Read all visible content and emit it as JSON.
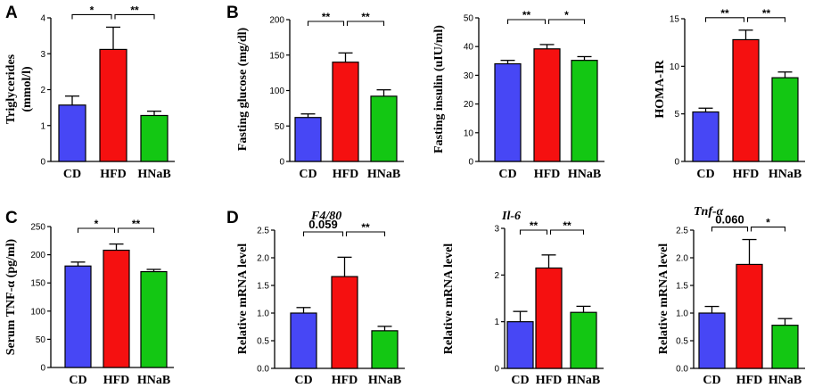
{
  "chart_data": [
    {
      "id": "tg",
      "panel": "A",
      "type": "bar",
      "gene": "",
      "ylabel": "Triglycerides",
      "ylabel2": "(mmol/l)",
      "categories": [
        "CD",
        "HFD",
        "HNaB"
      ],
      "values": [
        1.57,
        3.12,
        1.28
      ],
      "errors": [
        0.25,
        0.62,
        0.12
      ],
      "ylim": [
        0,
        4
      ],
      "yticks": [
        "0",
        "1",
        "2",
        "3",
        "4"
      ],
      "sig": [
        {
          "pair": "CD-HFD",
          "label": "*"
        },
        {
          "pair": "HFD-HNaB",
          "label": "**"
        }
      ]
    },
    {
      "id": "glu",
      "panel": "B",
      "type": "bar",
      "gene": "",
      "ylabel": "Fasting glucose (mg/dl)",
      "ylabel2": "",
      "categories": [
        "CD",
        "HFD",
        "HNaB"
      ],
      "values": [
        62,
        140,
        92
      ],
      "errors": [
        5,
        13,
        9
      ],
      "ylim": [
        0,
        200
      ],
      "yticks": [
        "0",
        "50",
        "100",
        "150",
        "200"
      ],
      "sig": [
        {
          "pair": "CD-HFD",
          "label": "**"
        },
        {
          "pair": "HFD-HNaB",
          "label": "**"
        }
      ]
    },
    {
      "id": "ins",
      "panel": "",
      "type": "bar",
      "gene": "",
      "ylabel": "Fasting  insulin (uIU/ml)",
      "ylabel2": "",
      "categories": [
        "CD",
        "HFD",
        "HNaB"
      ],
      "values": [
        34,
        39.2,
        35.2
      ],
      "errors": [
        1.2,
        1.5,
        1.3
      ],
      "ylim": [
        0,
        50
      ],
      "yticks": [
        "0",
        "10",
        "20",
        "30",
        "40",
        "50"
      ],
      "sig": [
        {
          "pair": "CD-HFD",
          "label": "**"
        },
        {
          "pair": "HFD-HNaB",
          "label": "*"
        }
      ]
    },
    {
      "id": "homa",
      "panel": "",
      "type": "bar",
      "gene": "",
      "ylabel": "HOMA-IR",
      "ylabel2": "",
      "categories": [
        "CD",
        "HFD",
        "HNaB"
      ],
      "values": [
        5.2,
        12.8,
        8.8
      ],
      "errors": [
        0.4,
        1.0,
        0.6
      ],
      "ylim": [
        0,
        15
      ],
      "yticks": [
        "0",
        "5",
        "10",
        "15"
      ],
      "sig": [
        {
          "pair": "CD-HFD",
          "label": "**"
        },
        {
          "pair": "HFD-HNaB",
          "label": "**"
        }
      ]
    },
    {
      "id": "tnf",
      "panel": "C",
      "type": "bar",
      "gene": "",
      "ylabel": "Serum TNF-α (pg/ml)",
      "ylabel2": "",
      "categories": [
        "CD",
        "HFD",
        "HNaB"
      ],
      "values": [
        180,
        208,
        170
      ],
      "errors": [
        7,
        11,
        4
      ],
      "ylim": [
        0,
        250
      ],
      "yticks": [
        "0",
        "50",
        "100",
        "150",
        "200",
        "250"
      ],
      "sig": [
        {
          "pair": "CD-HFD",
          "label": "*"
        },
        {
          "pair": "HFD-HNaB",
          "label": "**"
        }
      ]
    },
    {
      "id": "f480",
      "panel": "D",
      "type": "bar",
      "gene": "F4/80",
      "ylabel": "Relative mRNA  level",
      "ylabel2": "",
      "categories": [
        "CD",
        "HFD",
        "HNaB"
      ],
      "values": [
        1.0,
        1.66,
        0.68
      ],
      "errors": [
        0.1,
        0.35,
        0.08
      ],
      "ylim": [
        0,
        2.5
      ],
      "yticks": [
        "0.0",
        "0.5",
        "1.0",
        "1.5",
        "2.0",
        "2.5"
      ],
      "sig": [
        {
          "pair": "CD-HFD",
          "label": "0.059"
        },
        {
          "pair": "HFD-HNaB",
          "label": "**"
        }
      ]
    },
    {
      "id": "il6",
      "panel": "",
      "type": "bar",
      "gene": "Il-6",
      "ylabel": "Relative mRNA  level",
      "ylabel2": "",
      "categories": [
        "CD",
        "HFD",
        "HNaB"
      ],
      "values": [
        1.0,
        2.15,
        1.2
      ],
      "errors": [
        0.22,
        0.28,
        0.13
      ],
      "ylim": [
        0,
        3
      ],
      "yticks": [
        "0",
        "1",
        "2",
        "3"
      ],
      "sig": [
        {
          "pair": "CD-HFD",
          "label": "**"
        },
        {
          "pair": "HFD-HNaB",
          "label": "**"
        }
      ]
    },
    {
      "id": "tnfa",
      "panel": "",
      "type": "bar",
      "gene": "Tnf-α",
      "ylabel": "Relative mRNA  level",
      "ylabel2": "",
      "categories": [
        "CD",
        "HFD",
        "HNaB"
      ],
      "values": [
        1.0,
        1.88,
        0.78
      ],
      "errors": [
        0.12,
        0.45,
        0.12
      ],
      "ylim": [
        0,
        2.5
      ],
      "yticks": [
        "0.0",
        "0.5",
        "1.0",
        "1.5",
        "2.0",
        "2.5"
      ],
      "sig": [
        {
          "pair": "CD-HFD",
          "label": "0.060"
        },
        {
          "pair": "HFD-HNaB",
          "label": "*"
        }
      ]
    }
  ],
  "colors": {
    "CD": "#4747f5",
    "HFD": "#f51010",
    "HNaB": "#13c713",
    "axis": "#000000"
  }
}
